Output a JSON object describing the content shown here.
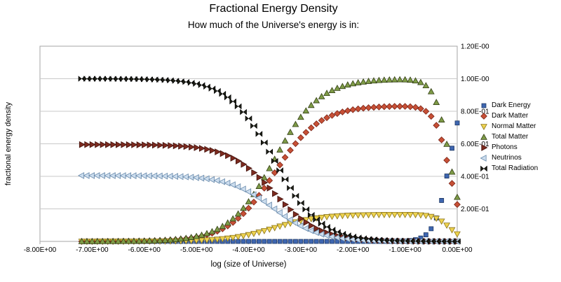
{
  "title": "Fractional Energy Density",
  "subtitle": "How much of the Universe's energy is in:",
  "chart_data": {
    "type": "scatter",
    "title": "Fractional Energy Density",
    "subtitle": "How much of the Universe's energy is in:",
    "xlabel": "log (size of Universe)",
    "ylabel": "fractional energy density",
    "xlim": [
      -8,
      0
    ],
    "ylim": [
      0,
      1.2
    ],
    "grid": "horizontal",
    "legend_position": "right",
    "x_ticks": [
      {
        "value": -8,
        "label": "-8.00E+00"
      },
      {
        "value": -7,
        "label": "-7.00E+00"
      },
      {
        "value": -6,
        "label": "-6.00E+00"
      },
      {
        "value": -5,
        "label": "-5.00E+00"
      },
      {
        "value": -4,
        "label": "-4.00E+00"
      },
      {
        "value": -3,
        "label": "-3.00E+00"
      },
      {
        "value": -2,
        "label": "-2.00E+00"
      },
      {
        "value": -1,
        "label": "-1.00E+00"
      },
      {
        "value": 0,
        "label": "0.00E+00"
      }
    ],
    "y_ticks": [
      {
        "value": 0.2,
        "label": "2.00E-01"
      },
      {
        "value": 0.4,
        "label": "4.00E-01"
      },
      {
        "value": 0.6,
        "label": "6.00E-01"
      },
      {
        "value": 0.8,
        "label": "8.00E-01"
      },
      {
        "value": 1.0,
        "label": "1.00E-00"
      },
      {
        "value": 1.2,
        "label": "1.20E-00"
      }
    ],
    "x": [
      -7.2,
      -7.1,
      -7.0,
      -6.9,
      -6.8,
      -6.7,
      -6.6,
      -6.5,
      -6.4,
      -6.3,
      -6.2,
      -6.1,
      -6.0,
      -5.9,
      -5.8,
      -5.7,
      -5.6,
      -5.5,
      -5.4,
      -5.3,
      -5.2,
      -5.1,
      -5.0,
      -4.9,
      -4.8,
      -4.7,
      -4.6,
      -4.5,
      -4.4,
      -4.3,
      -4.2,
      -4.1,
      -4.0,
      -3.9,
      -3.8,
      -3.7,
      -3.6,
      -3.5,
      -3.4,
      -3.3,
      -3.2,
      -3.1,
      -3.0,
      -2.9,
      -2.8,
      -2.7,
      -2.6,
      -2.5,
      -2.4,
      -2.3,
      -2.2,
      -2.1,
      -2.0,
      -1.9,
      -1.8,
      -1.7,
      -1.6,
      -1.5,
      -1.4,
      -1.3,
      -1.2,
      -1.1,
      -1.0,
      -0.9,
      -0.8,
      -0.7,
      -0.6,
      -0.5,
      -0.4,
      -0.3,
      -0.2,
      -0.1,
      0.0
    ],
    "base_fractions": {
      "total_matter": [
        0.0002,
        0.0003,
        0.0003,
        0.0004,
        0.0005,
        0.0006,
        0.0008,
        0.001,
        0.0013,
        0.0016,
        0.002,
        0.0026,
        0.0032,
        0.0041,
        0.0051,
        0.0064,
        0.0081,
        0.0101,
        0.0127,
        0.016,
        0.02,
        0.0251,
        0.0314,
        0.0392,
        0.0488,
        0.0607,
        0.0752,
        0.0929,
        0.1142,
        0.1397,
        0.1697,
        0.2046,
        0.2446,
        0.2896,
        0.3391,
        0.3925,
        0.4486,
        0.5059,
        0.5632,
        0.6188,
        0.6714,
        0.72,
        0.764,
        0.803,
        0.8369,
        0.866,
        0.8906,
        0.911,
        0.928,
        0.942,
        0.9533,
        0.9626,
        0.97,
        0.9761,
        0.9809,
        0.9848,
        0.9878,
        0.9903,
        0.9921,
        0.9935,
        0.9945,
        0.9948,
        0.9943,
        0.9923,
        0.9876,
        0.9777,
        0.9582,
        0.9212,
        0.855,
        0.7477,
        0.5978,
        0.4271,
        0.272
      ],
      "total_radiation": [
        0.9998,
        0.9997,
        0.9997,
        0.9996,
        0.9995,
        0.9994,
        0.9992,
        0.999,
        0.9987,
        0.9984,
        0.998,
        0.9974,
        0.9968,
        0.9959,
        0.9949,
        0.9936,
        0.9919,
        0.9899,
        0.9873,
        0.984,
        0.98,
        0.9749,
        0.9686,
        0.9608,
        0.9512,
        0.9393,
        0.9248,
        0.9071,
        0.8858,
        0.8603,
        0.8303,
        0.7954,
        0.7554,
        0.7104,
        0.6609,
        0.6075,
        0.5514,
        0.4941,
        0.4368,
        0.3812,
        0.3286,
        0.28,
        0.236,
        0.197,
        0.1631,
        0.134,
        0.1094,
        0.089,
        0.072,
        0.058,
        0.0467,
        0.0374,
        0.03,
        0.0239,
        0.0191,
        0.0152,
        0.0121,
        0.0097,
        0.0077,
        0.0061,
        0.0049,
        0.0039,
        0.0031,
        0.0024,
        0.0019,
        0.0015,
        0.0012,
        0.0009,
        0.0007,
        0.0005,
        0.0003,
        0.0002,
        0.0001
      ],
      "dark_energy": [
        0,
        0,
        0,
        0,
        0,
        0,
        0,
        0,
        0,
        0,
        0,
        0,
        0,
        0,
        0,
        0,
        0,
        0,
        0,
        0,
        0,
        0,
        0,
        0,
        0,
        0,
        0,
        0,
        0,
        0,
        0,
        0,
        0,
        0,
        0,
        0,
        0,
        0,
        0,
        0,
        0,
        0,
        0,
        0,
        0,
        0,
        0,
        0,
        0,
        0,
        0,
        0,
        0,
        0,
        0,
        0,
        0,
        0.0001,
        0.0002,
        0.0003,
        0.0007,
        0.0013,
        0.0027,
        0.0053,
        0.0105,
        0.0208,
        0.0406,
        0.0779,
        0.1444,
        0.2519,
        0.4019,
        0.5728,
        0.7279
      ]
    },
    "series": [
      {
        "name": "Dark Energy",
        "base": "dark_energy",
        "share": 1.0,
        "marker": "square",
        "fill": "#3E66B0",
        "stroke": "#1F3864"
      },
      {
        "name": "Dark Matter",
        "base": "total_matter",
        "share": 0.8346,
        "marker": "diamond",
        "fill": "#C75036",
        "stroke": "#7A2417"
      },
      {
        "name": "Normal Matter",
        "base": "total_matter",
        "share": 0.1654,
        "marker": "triangle-down",
        "fill": "#EDD24F",
        "stroke": "#8A731A"
      },
      {
        "name": "Total Matter",
        "base": "total_matter",
        "share": 1.0,
        "marker": "triangle-up",
        "fill": "#7E9B47",
        "stroke": "#333F14"
      },
      {
        "name": "Photons",
        "base": "total_radiation",
        "share": 0.5952,
        "marker": "triangle-right",
        "fill": "#7D2B20",
        "stroke": "#40100A"
      },
      {
        "name": "Neutrinos",
        "base": "total_radiation",
        "share": 0.4048,
        "marker": "triangle-left",
        "fill": "#CCDDEE",
        "stroke": "#6688AA"
      },
      {
        "name": "Total Radiation",
        "base": "total_radiation",
        "share": 1.0,
        "marker": "bowtie",
        "fill": "#23251A",
        "stroke": "#000000"
      }
    ],
    "colors": {
      "gridline": "#C9C9C9",
      "plot_border": "#A6A6A6",
      "background": "#FFFFFF"
    }
  }
}
